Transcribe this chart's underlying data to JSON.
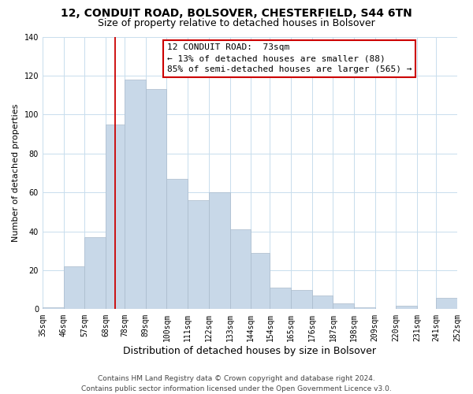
{
  "title1": "12, CONDUIT ROAD, BOLSOVER, CHESTERFIELD, S44 6TN",
  "title2": "Size of property relative to detached houses in Bolsover",
  "xlabel": "Distribution of detached houses by size in Bolsover",
  "ylabel": "Number of detached properties",
  "bar_lefts": [
    35,
    46,
    57,
    68,
    78,
    89,
    100,
    111,
    122,
    133,
    144,
    154,
    165,
    176,
    187,
    198,
    209,
    220,
    231,
    241
  ],
  "bar_rights": [
    46,
    57,
    68,
    78,
    89,
    100,
    111,
    122,
    133,
    144,
    154,
    165,
    176,
    187,
    198,
    209,
    220,
    231,
    241,
    252
  ],
  "bar_heights": [
    1,
    22,
    37,
    95,
    118,
    113,
    67,
    56,
    60,
    41,
    29,
    11,
    10,
    7,
    3,
    1,
    0,
    2,
    0,
    6
  ],
  "bar_color": "#c8d8e8",
  "bar_edge_color": "#aabbcc",
  "grid_color": "#c8dded",
  "annotation_box_edge": "#cc0000",
  "annotation_lines": [
    "12 CONDUIT ROAD:  73sqm",
    "← 13% of detached houses are smaller (88)",
    "85% of semi-detached houses are larger (565) →"
  ],
  "property_line_x": 73,
  "property_line_color": "#cc0000",
  "ylim": [
    0,
    140
  ],
  "xlim": [
    35,
    252
  ],
  "tick_positions": [
    35,
    46,
    57,
    68,
    78,
    89,
    100,
    111,
    122,
    133,
    144,
    154,
    165,
    176,
    187,
    198,
    209,
    220,
    231,
    241,
    252
  ],
  "tick_labels": [
    "35sqm",
    "46sqm",
    "57sqm",
    "68sqm",
    "78sqm",
    "89sqm",
    "100sqm",
    "111sqm",
    "122sqm",
    "133sqm",
    "144sqm",
    "154sqm",
    "165sqm",
    "176sqm",
    "187sqm",
    "198sqm",
    "209sqm",
    "220sqm",
    "231sqm",
    "241sqm",
    "252sqm"
  ],
  "ytick_labels": [
    0,
    20,
    40,
    60,
    80,
    100,
    120,
    140
  ],
  "footer_line1": "Contains HM Land Registry data © Crown copyright and database right 2024.",
  "footer_line2": "Contains public sector information licensed under the Open Government Licence v3.0.",
  "title1_fontsize": 10,
  "title2_fontsize": 9,
  "xlabel_fontsize": 9,
  "ylabel_fontsize": 8,
  "tick_fontsize": 7,
  "annotation_fontsize": 8,
  "footer_fontsize": 6.5
}
